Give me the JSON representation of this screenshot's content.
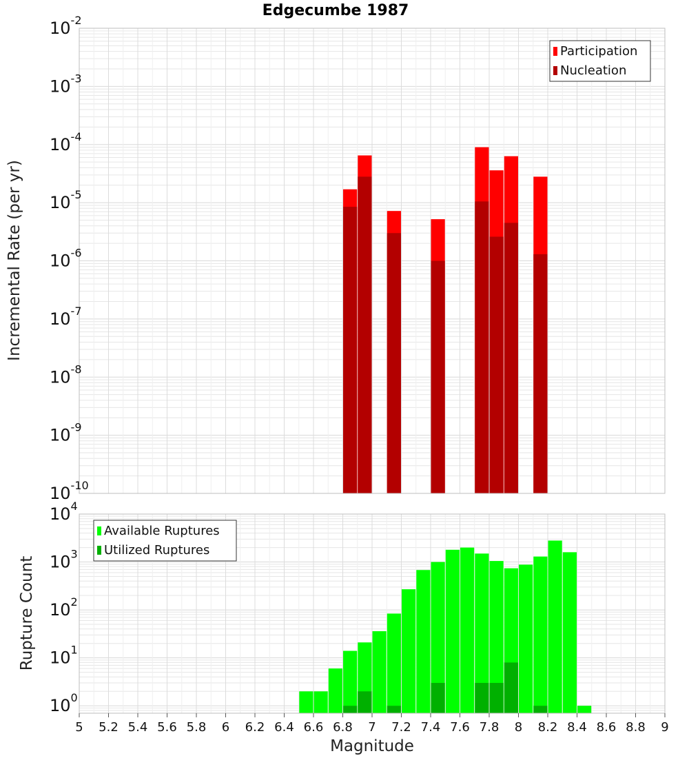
{
  "title": "Edgecumbe 1987",
  "colors": {
    "participation": "#ff0000",
    "nucleation": "#b30000",
    "available": "#00ff00",
    "utilized": "#00b000",
    "grid": "#e6e6e6",
    "frame": "#bdbdbd"
  },
  "chart_data": [
    {
      "type": "bar",
      "ylabel": "Incremental Rate (per yr)",
      "yscale": "log",
      "ylim": [
        1e-10,
        0.01
      ],
      "ytick_exponents": [
        "-10",
        "-9",
        "-8",
        "-7",
        "-6",
        "-5",
        "-4",
        "-3",
        "-2"
      ],
      "xlim": [
        5,
        9
      ],
      "bar_width": 0.095,
      "legend": {
        "position": "top-right",
        "entries": [
          "Participation",
          "Nucleation"
        ]
      },
      "series": [
        {
          "name": "Participation",
          "x": [
            6.85,
            6.95,
            7.15,
            7.45,
            7.75,
            7.85,
            7.95,
            8.15
          ],
          "values": [
            1.7e-05,
            6.5e-05,
            7.2e-06,
            5.2e-06,
            9e-05,
            3.6e-05,
            6.3e-05,
            2.8e-05
          ]
        },
        {
          "name": "Nucleation",
          "x": [
            6.85,
            6.95,
            7.15,
            7.45,
            7.75,
            7.85,
            7.95,
            8.15
          ],
          "values": [
            8.5e-06,
            2.8e-05,
            3e-06,
            1e-06,
            1.05e-05,
            2.6e-06,
            4.5e-06,
            1.3e-06
          ]
        }
      ]
    },
    {
      "type": "bar",
      "ylabel": "Rupture Count",
      "xlabel": "Magnitude",
      "yscale": "log",
      "ylim": [
        0.7,
        10000
      ],
      "ytick_exponents": [
        "0",
        "1",
        "2",
        "3",
        "4"
      ],
      "xlim": [
        5,
        9
      ],
      "xticks": [
        "5",
        "5.2",
        "5.4",
        "5.6",
        "5.8",
        "6",
        "6.2",
        "6.4",
        "6.6",
        "6.8",
        "7",
        "7.2",
        "7.4",
        "7.6",
        "7.8",
        "8",
        "8.2",
        "8.4",
        "8.6",
        "8.8",
        "9"
      ],
      "bar_width": 0.095,
      "legend": {
        "position": "top-left",
        "entries": [
          "Available Ruptures",
          "Utilized Ruptures"
        ]
      },
      "series": [
        {
          "name": "Available Ruptures",
          "x": [
            6.55,
            6.65,
            6.75,
            6.85,
            6.95,
            7.05,
            7.15,
            7.25,
            7.35,
            7.45,
            7.55,
            7.65,
            7.75,
            7.85,
            7.95,
            8.05,
            8.15,
            8.25,
            8.35,
            8.45
          ],
          "values": [
            2,
            2,
            6,
            14,
            21,
            36,
            84,
            270,
            680,
            1000,
            1800,
            2000,
            1500,
            1050,
            740,
            880,
            1300,
            2800,
            1600,
            1
          ]
        },
        {
          "name": "Utilized Ruptures",
          "x": [
            6.85,
            6.95,
            7.15,
            7.45,
            7.75,
            7.85,
            7.95,
            8.15
          ],
          "values": [
            1,
            2,
            1,
            3,
            3,
            3,
            8,
            1
          ]
        }
      ]
    }
  ]
}
